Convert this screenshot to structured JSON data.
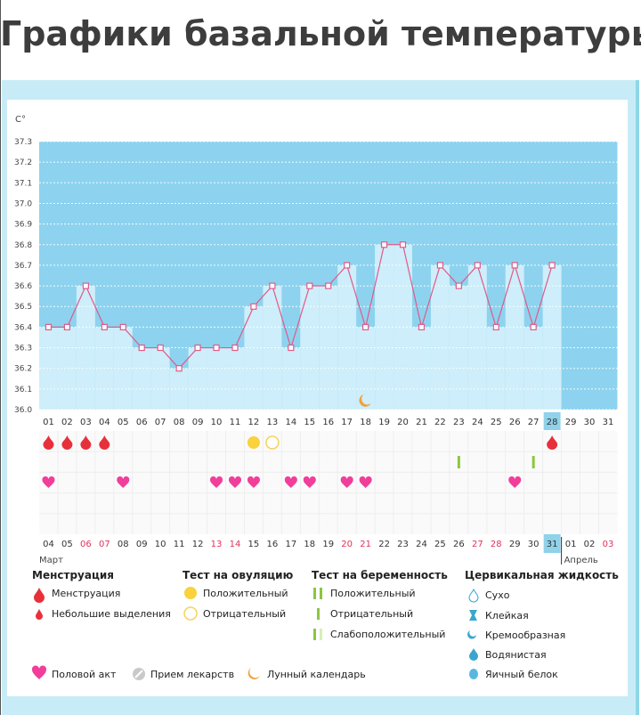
{
  "title": "Графики базальной температуры",
  "colors": {
    "sky": "#8dd3ef",
    "bar": "#cdeefa",
    "line": "#e05a8a",
    "blood": "#e8303a",
    "heart": "#f03e9a",
    "ovulation_pos": "#f9d23c",
    "preg": "#8cc63f",
    "moon": "#f2a13a",
    "today": "#8fd2ea"
  },
  "chart_data": {
    "type": "line",
    "title": "Графики базальной температуры",
    "ylabel": "C°",
    "ylim": [
      36.0,
      37.3
    ],
    "yticks": [
      "37.3",
      "37.2",
      "37.1",
      "37.0",
      "36.9",
      "36.8",
      "36.7",
      "36.6",
      "36.5",
      "36.4",
      "36.3",
      "36.2",
      "36.1",
      "36.0"
    ],
    "cycle_days": [
      "01",
      "02",
      "03",
      "04",
      "05",
      "06",
      "07",
      "08",
      "09",
      "10",
      "11",
      "12",
      "13",
      "14",
      "15",
      "16",
      "17",
      "18",
      "19",
      "20",
      "21",
      "22",
      "23",
      "24",
      "25",
      "26",
      "27",
      "28",
      "29",
      "30",
      "31"
    ],
    "temperatures": [
      36.4,
      36.4,
      36.6,
      36.4,
      36.4,
      36.3,
      36.3,
      36.2,
      36.3,
      36.3,
      36.3,
      36.5,
      36.6,
      36.3,
      36.6,
      36.6,
      36.7,
      36.4,
      36.8,
      36.8,
      36.4,
      36.7,
      36.6,
      36.7,
      36.4,
      36.7,
      36.4,
      36.7
    ],
    "current_day": "28",
    "dates": [
      "04",
      "05",
      "06",
      "07",
      "08",
      "09",
      "10",
      "11",
      "12",
      "13",
      "14",
      "15",
      "16",
      "17",
      "18",
      "19",
      "20",
      "21",
      "22",
      "23",
      "24",
      "25",
      "26",
      "27",
      "28",
      "29",
      "30",
      "31",
      "01",
      "02",
      "03"
    ],
    "highlight_dates": [
      2,
      3,
      9,
      10,
      16,
      17,
      23,
      24,
      30
    ],
    "current_date": "31",
    "month_start": "Март",
    "month_next": "Апрель",
    "menstruation_days": [
      1,
      2,
      3,
      4,
      28
    ],
    "ovulation_positive_days": [
      12
    ],
    "ovulation_negative_days": [
      13
    ],
    "pregnancy_negative_days": [
      23,
      27
    ],
    "intercourse_days": [
      1,
      5,
      10,
      11,
      12,
      14,
      15,
      17,
      18,
      26
    ],
    "moon_days": [
      18
    ]
  },
  "legend": {
    "menstruation": {
      "title": "Менструация",
      "items": [
        "Менструация",
        "Небольшие выделения"
      ]
    },
    "ovulation": {
      "title": "Тест на овуляцию",
      "items": [
        "Положительный",
        "Отрицательный"
      ]
    },
    "pregnancy": {
      "title": "Тест на беременность",
      "items": [
        "Положительный",
        "Отрицательный",
        "Слабоположительный"
      ]
    },
    "cervical": {
      "title": "Цервикальная жидкость",
      "items": [
        "Сухо",
        "Клейкая",
        "Кремообразная",
        "Водянистая",
        "Яичный белок"
      ]
    },
    "bottom": [
      "Половой акт",
      "Прием лекарств",
      "Лунный календарь"
    ]
  }
}
